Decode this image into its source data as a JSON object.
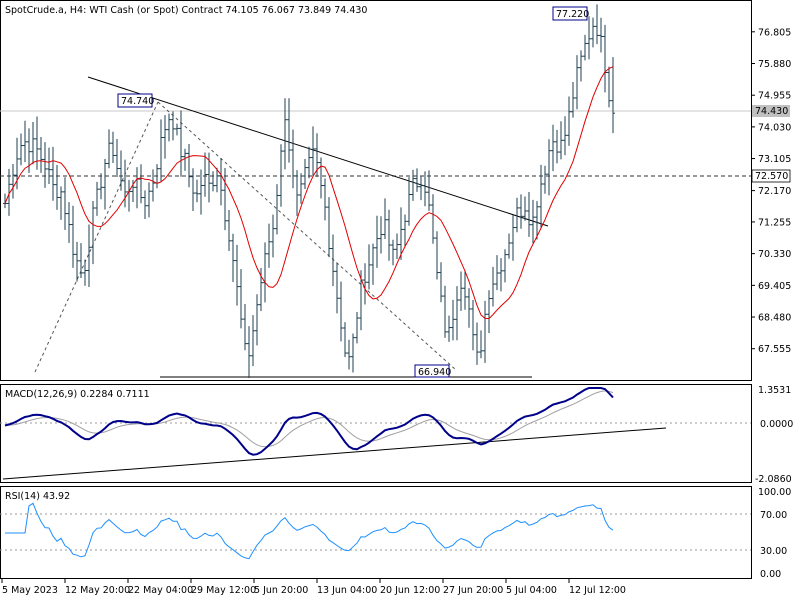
{
  "header": {
    "text": "SpotCrude.a, H4:  WTI Cash (or Spot) Contract  74.105 76.067 73.849 74.430"
  },
  "chart_data": {
    "type": "candlestick",
    "symbol": "SpotCrude.a",
    "timeframe": "H4",
    "description": "WTI Cash (or Spot) Contract",
    "ohlc": {
      "open": 74.105,
      "high": 76.067,
      "low": 73.849,
      "close": 74.43
    },
    "price_axis": {
      "ticks": [
        "76.805",
        "75.880",
        "74.955",
        "74.030",
        "73.105",
        "72.170",
        "71.255",
        "70.330",
        "69.405",
        "68.480",
        "67.555"
      ],
      "range": [
        66.7,
        77.5
      ]
    },
    "price_labels": {
      "current": "74.430",
      "level": "72.570",
      "high_a": "74.740",
      "high_b": "77.220",
      "low": "66.940"
    },
    "price_series": [
      71.8,
      72.3,
      72.8,
      73.2,
      73.5,
      73.6,
      73.55,
      73.5,
      73.4,
      73.2,
      73.0,
      72.8,
      72.4,
      72.1,
      72.3,
      72.0,
      71.4,
      70.9,
      70.3,
      70.0,
      69.7,
      70.1,
      70.9,
      71.5,
      72.0,
      72.5,
      73.0,
      73.3,
      73.4,
      72.9,
      72.5,
      72.0,
      72.2,
      72.5,
      72.3,
      72.1,
      71.8,
      72.0,
      72.3,
      72.7,
      73.3,
      73.8,
      74.2,
      74.4,
      74.1,
      73.6,
      73.2,
      73.0,
      72.5,
      72.2,
      72.0,
      72.4,
      72.5,
      72.3,
      72.5,
      72.8,
      72.3,
      71.6,
      71.1,
      70.4,
      69.5,
      68.7,
      67.6,
      67.2,
      67.8,
      68.5,
      69.2,
      69.8,
      70.4,
      70.9,
      71.2,
      72.6,
      73.8,
      74.2,
      73.4,
      72.6,
      71.8,
      72.2,
      72.6,
      72.9,
      73.2,
      72.9,
      72.3,
      71.8,
      70.9,
      70.1,
      69.3,
      68.6,
      67.7,
      67.1,
      67.4,
      68.2,
      69.0,
      69.6,
      69.9,
      70.2,
      70.6,
      70.9,
      71.2,
      71.0,
      70.5,
      70.2,
      70.6,
      71.1,
      71.5,
      71.9,
      72.3,
      72.4,
      72.6,
      72.4,
      71.8,
      70.9,
      69.9,
      69.1,
      68.4,
      67.8,
      68.3,
      69.0,
      69.5,
      69.6,
      69.1,
      68.4,
      67.4,
      67.2,
      67.9,
      68.8,
      69.4,
      69.6,
      69.8,
      70.1,
      70.4,
      70.8,
      71.2,
      71.5,
      71.6,
      71.8,
      71.5,
      71.2,
      71.8,
      72.3,
      72.7,
      73.2,
      73.6,
      73.7,
      73.4,
      73.6,
      74.0,
      74.6,
      75.2,
      75.7,
      76.1,
      76.5,
      76.8,
      77.1,
      76.9,
      76.4,
      75.8,
      75.0,
      74.43
    ],
    "macd": {
      "label": "MACD(12,26,9) 0.2284 0.7111",
      "ticks": [
        "1.3531",
        "0.0000",
        "-2.0860"
      ],
      "range": [
        -2.25,
        1.55
      ]
    },
    "rsi": {
      "label": "RSI(14) 43.92",
      "ticks": [
        "100.00",
        "70.00",
        "30.00",
        "0.00"
      ],
      "levels": [
        70,
        30
      ],
      "range": [
        0,
        100
      ]
    },
    "time_axis": [
      "5 May 2023",
      "12 May 20:00",
      "22 May 04:00",
      "29 May 12:00",
      "5 Jun 20:00",
      "13 Jun 04:00",
      "20 Jun 12:00",
      "27 Jun 20:00",
      "5 Jul 04:00",
      "12 Jul 12:00"
    ],
    "colors": {
      "bar": "#1f3f4f",
      "ma": "#e00000",
      "macd": "#00008b",
      "signal": "#a0a0a0",
      "rsi": "#1e90ff"
    }
  }
}
